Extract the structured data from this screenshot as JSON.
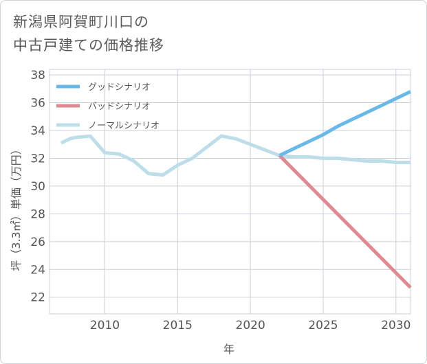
{
  "chart_data": {
    "type": "line",
    "title_line1": "新潟県阿賀町川口の",
    "title_line2": "中古戸建ての価格推移",
    "xlabel": "年",
    "ylabel": "坪（3.3㎡）単価（万円）",
    "xlim": [
      2006.2,
      2031
    ],
    "ylim": [
      20.8,
      38.4
    ],
    "xticks": [
      2010,
      2015,
      2020,
      2025,
      2030
    ],
    "yticks": [
      22,
      24,
      26,
      28,
      30,
      32,
      34,
      36,
      38
    ],
    "grid": true,
    "legend_position": "top-left",
    "series": [
      {
        "name": "グッドシナリオ",
        "color": "#6ab8e8",
        "x": [
          2022,
          2023,
          2024,
          2025,
          2026,
          2027,
          2028,
          2029,
          2030,
          2031
        ],
        "values": [
          32.2,
          32.7,
          33.2,
          33.7,
          34.3,
          34.8,
          35.3,
          35.8,
          36.3,
          36.8
        ]
      },
      {
        "name": "バッドシナリオ",
        "color": "#df8a92",
        "x": [
          2022,
          2031
        ],
        "values": [
          32.2,
          22.7
        ]
      },
      {
        "name": "ノーマルシナリオ",
        "color": "#bddde9",
        "x": [
          2007,
          2007.6,
          2008,
          2009,
          2010,
          2011,
          2012,
          2013,
          2014,
          2015,
          2016,
          2017,
          2018,
          2019,
          2020,
          2021,
          2022,
          2023,
          2024,
          2025,
          2026,
          2027,
          2028,
          2029,
          2030,
          2031
        ],
        "values": [
          33.1,
          33.4,
          33.5,
          33.6,
          32.4,
          32.3,
          31.8,
          30.9,
          30.8,
          31.5,
          32.0,
          32.8,
          33.6,
          33.4,
          33.0,
          32.6,
          32.2,
          32.1,
          32.1,
          32.0,
          32.0,
          31.9,
          31.8,
          31.8,
          31.7,
          31.7
        ]
      }
    ]
  }
}
